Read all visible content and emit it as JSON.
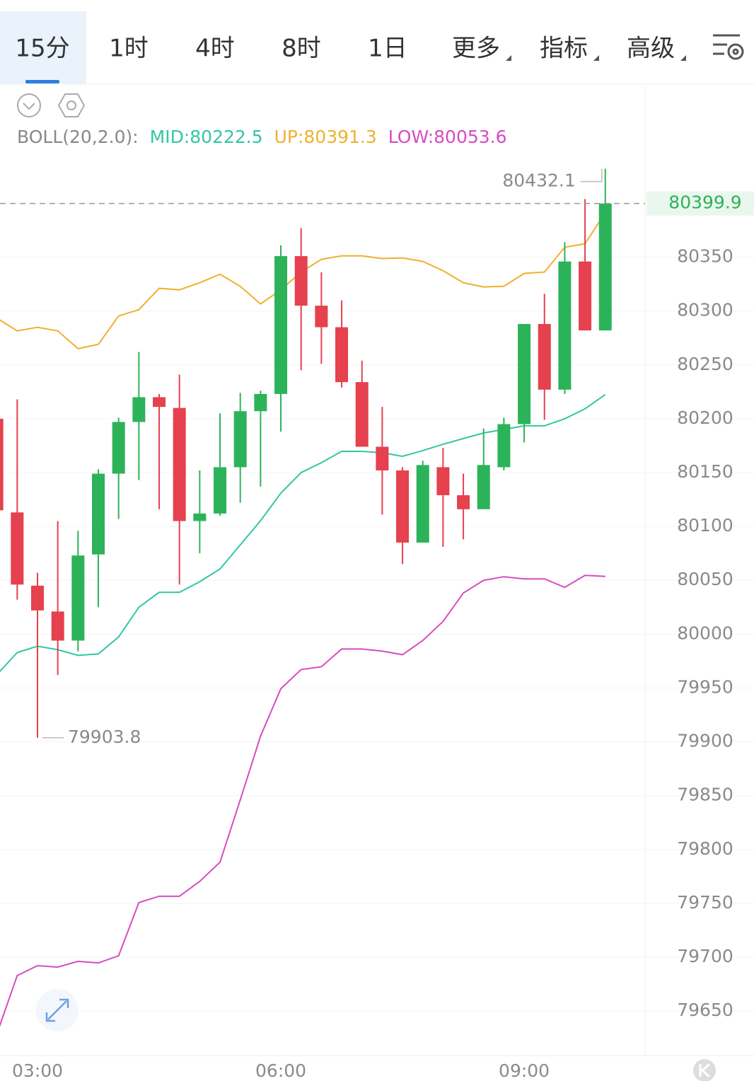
{
  "tabs": [
    "15分",
    "1时",
    "4时",
    "8时",
    "1日",
    "更多",
    "指标",
    "高级"
  ],
  "active_tab": 0,
  "chart_data": {
    "type": "candlestick",
    "indicator": "BOLL(20,2.0):",
    "categories": [
      null,
      null,
      "03:00",
      null,
      null,
      null,
      null,
      null,
      null,
      null,
      null,
      null,
      null,
      null,
      "06:00",
      null,
      null,
      null,
      null,
      null,
      null,
      null,
      null,
      null,
      null,
      null,
      "09:00",
      null,
      null,
      null,
      null
    ],
    "open": [
      80200,
      80113,
      80045,
      80021,
      79994,
      80074,
      80149,
      80197,
      80220,
      80210,
      80105,
      80112,
      80155,
      80207,
      80223,
      80351,
      80305,
      80285,
      80234,
      80174,
      80152,
      80085,
      80155,
      80129,
      80116,
      80155,
      80195,
      80288,
      80227,
      80346,
      80282
    ],
    "high": [
      80200,
      80218,
      80057,
      80105,
      80096,
      80153,
      80201,
      80262,
      80223,
      80241,
      80152,
      80205,
      80224,
      80226,
      80361,
      80377,
      80336,
      80310,
      80254,
      80211,
      80155,
      80161,
      80173,
      80149,
      80191,
      80201,
      80288,
      80316,
      80364,
      80404,
      80432.1
    ],
    "low": [
      80110,
      80032,
      79903.8,
      79962,
      79984,
      80025,
      80107,
      80143,
      80116,
      80046,
      80075,
      80110,
      80122,
      80137,
      80188,
      80245,
      80251,
      80229,
      80174,
      80111,
      80065,
      80085,
      80081,
      80088,
      80116,
      80152,
      80178,
      80199,
      80223,
      80282,
      80282
    ],
    "close": [
      80115,
      80046,
      80022,
      79994,
      80073,
      80149,
      80197,
      80220,
      80211,
      80105,
      80112,
      80155,
      80207,
      80223,
      80351,
      80305,
      80285,
      80234,
      80174,
      80152,
      80085,
      80157,
      80129,
      80116,
      80157,
      80195,
      80288,
      80227,
      80346,
      80282,
      80399.9
    ],
    "up_color": "#2cb35a",
    "down_color": "#e5414e",
    "series": [
      {
        "name": "MID:80222.5",
        "color": "#34c6a4",
        "values": [
          79962.5,
          79982.9,
          79988.8,
          79985.5,
          79980.3,
          79981.6,
          79997.4,
          80025,
          80038.8,
          80038.8,
          80048.7,
          80060.5,
          80082.9,
          80105.3,
          80130.9,
          80150,
          80159.2,
          80169.7,
          80169.7,
          80168.4,
          80165.1,
          80170.4,
          80176.3,
          80181.6,
          80186.8,
          80190.1,
          80193.4,
          80193.4,
          80200,
          80209.2,
          80222.5
        ]
      },
      {
        "name": "UP:80391.3",
        "color": "#f0b030",
        "values": [
          80293.4,
          80281.6,
          80284.9,
          80281.6,
          80265.1,
          80269.1,
          80295.4,
          80301.3,
          80321.1,
          80319.7,
          80326.3,
          80334.2,
          80323,
          80306.6,
          80319.7,
          80336.2,
          80348,
          80351.3,
          80351.3,
          80348.7,
          80349.3,
          80346.1,
          80337.5,
          80326.3,
          80322.4,
          80323,
          80334.9,
          80336.2,
          80359.2,
          80362.5,
          80391.3
        ]
      },
      {
        "name": "LOW:80053.6",
        "color": "#d64cc2",
        "values": [
          79629,
          79682.9,
          79692.1,
          79690.8,
          79696.1,
          79694.7,
          79701.3,
          79750.7,
          79756.6,
          79756.6,
          79770.4,
          79788.2,
          79846.1,
          79905.3,
          79949.3,
          79967.1,
          79969.7,
          79986.2,
          79986.2,
          79984.2,
          79980.9,
          79994.1,
          80011.8,
          80038.2,
          80050,
          80053.3,
          80051.3,
          80051.3,
          80043.4,
          80054.6,
          80053.6
        ]
      }
    ],
    "ylim": [
      79610,
      80510
    ],
    "yticks": [
      79650,
      79700,
      79750,
      79800,
      79850,
      79900,
      79950,
      80000,
      80050,
      80100,
      80150,
      80200,
      80250,
      80300,
      80350
    ],
    "grid": true
  }
}
